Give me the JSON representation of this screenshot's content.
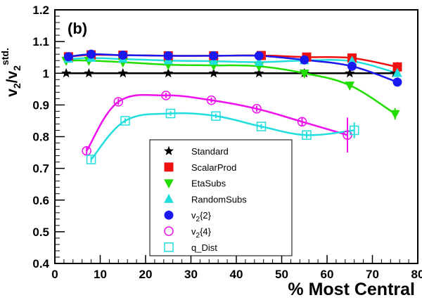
{
  "chart_data": {
    "type": "line",
    "panel_label": "(b)",
    "xlabel": "% Most Central",
    "ylabel": {
      "base": "v",
      "sub": "2",
      "sep": "/v",
      "sub2": "2",
      "sup": "std."
    },
    "xlim": [
      0,
      80
    ],
    "ylim": [
      0.4,
      1.2
    ],
    "x_ticks": [
      0,
      10,
      20,
      30,
      40,
      50,
      60,
      70,
      80
    ],
    "y_ticks": [
      0.4,
      0.5,
      0.6,
      0.7,
      0.8,
      0.9,
      1.0,
      1.1,
      1.2
    ],
    "x_tick_labels": [
      "0",
      "10",
      "20",
      "30",
      "40",
      "50",
      "60",
      "70",
      "80"
    ],
    "y_tick_labels": [
      "0.4",
      "0.5",
      "0.6",
      "0.7",
      "0.8",
      "0.9",
      "1",
      "1.1",
      "1.2"
    ],
    "series": [
      {
        "name": "Standard",
        "marker": "star",
        "color": "#000000",
        "fill": true,
        "x": [
          2.5,
          7.5,
          15,
          25,
          35,
          45,
          55,
          65,
          75
        ],
        "y": [
          1.0,
          1.0,
          1.0,
          1.0,
          1.0,
          1.0,
          1.0,
          1.0,
          1.0
        ]
      },
      {
        "name": "ScalarProd",
        "marker": "square",
        "color": "#ee1111",
        "fill": true,
        "x": [
          3,
          8,
          15,
          25,
          35,
          45.5,
          55.5,
          65.5,
          75.5
        ],
        "y": [
          1.052,
          1.058,
          1.057,
          1.055,
          1.055,
          1.056,
          1.051,
          1.048,
          1.02
        ]
      },
      {
        "name": "EtaSubs",
        "marker": "triangle-down",
        "color": "#22dd00",
        "fill": true,
        "x": [
          2.5,
          7.5,
          15,
          25,
          35,
          45,
          55,
          65,
          75
        ],
        "y": [
          1.04,
          1.04,
          1.035,
          1.027,
          1.025,
          1.022,
          1.0,
          0.962,
          0.872
        ]
      },
      {
        "name": "RandomSubs",
        "marker": "triangle-up",
        "color": "#22dddd",
        "fill": true,
        "x": [
          3,
          8,
          15,
          25,
          35,
          45,
          55,
          65.5,
          75.5
        ],
        "y": [
          1.045,
          1.048,
          1.045,
          1.04,
          1.038,
          1.035,
          1.04,
          1.038,
          1.0
        ]
      },
      {
        "name": "v2{2}",
        "label": {
          "base": "v",
          "sub": "2",
          "rest": "{2}"
        },
        "marker": "circle",
        "color": "#1a1aee",
        "fill": true,
        "x": [
          3,
          8,
          15,
          25,
          35,
          45,
          55,
          65.5,
          75.5
        ],
        "y": [
          1.052,
          1.06,
          1.057,
          1.055,
          1.055,
          1.055,
          1.042,
          1.022,
          0.972
        ]
      },
      {
        "name": "v2{4}",
        "label": {
          "base": "v",
          "sub": "2",
          "rest": "{4}"
        },
        "marker": "circle",
        "color": "#ee11ee",
        "fill": false,
        "x": [
          7,
          14,
          24.5,
          34.5,
          44.5,
          54.5,
          64.5
        ],
        "y": [
          0.755,
          0.91,
          0.93,
          0.915,
          0.888,
          0.847,
          0.805
        ]
      },
      {
        "name": "q_Dist",
        "marker": "square",
        "color": "#22dddd",
        "fill": false,
        "x": [
          8,
          15.5,
          25.5,
          35.5,
          45.5,
          55.5,
          66
        ],
        "y": [
          0.728,
          0.85,
          0.873,
          0.865,
          0.832,
          0.805,
          0.82
        ]
      }
    ],
    "error_bars": {
      "q_Dist": [
        0.01,
        0.008,
        0.007,
        0.007,
        0.008,
        0.01,
        0.025
      ],
      "v2{4}": [
        0.012,
        0.01,
        0.008,
        0.008,
        0.009,
        0.015,
        0.055
      ],
      "EtaSubs": [
        0,
        0,
        0,
        0,
        0,
        0,
        0,
        0.012,
        0.018
      ],
      "ScalarProd": [
        0,
        0,
        0,
        0,
        0,
        0,
        0,
        0,
        0.015
      ]
    },
    "legend": {
      "placement": "center",
      "entries": [
        "Standard",
        "ScalarProd",
        "EtaSubs",
        "RandomSubs",
        "v2{2}",
        "v2{4}",
        "q_Dist"
      ]
    },
    "grid": false
  }
}
